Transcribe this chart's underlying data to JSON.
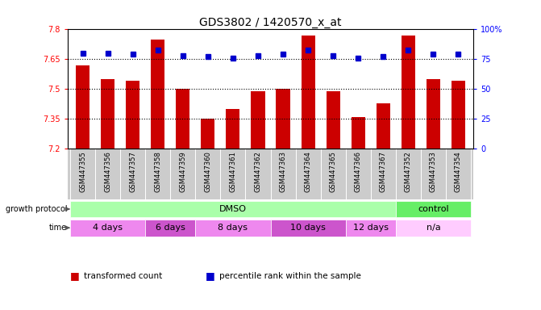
{
  "title": "GDS3802 / 1420570_x_at",
  "samples": [
    "GSM447355",
    "GSM447356",
    "GSM447357",
    "GSM447358",
    "GSM447359",
    "GSM447360",
    "GSM447361",
    "GSM447362",
    "GSM447363",
    "GSM447364",
    "GSM447365",
    "GSM447366",
    "GSM447367",
    "GSM447352",
    "GSM447353",
    "GSM447354"
  ],
  "bar_values": [
    7.62,
    7.55,
    7.54,
    7.75,
    7.5,
    7.35,
    7.4,
    7.49,
    7.5,
    7.77,
    7.49,
    7.36,
    7.43,
    7.77,
    7.55,
    7.54
  ],
  "percentile_values": [
    80,
    80,
    79,
    83,
    78,
    77,
    76,
    78,
    79,
    83,
    78,
    76,
    77,
    83,
    79,
    79
  ],
  "bar_bottom": 7.2,
  "ylim": [
    7.2,
    7.8
  ],
  "y_ticks": [
    7.2,
    7.35,
    7.5,
    7.65,
    7.8
  ],
  "y_tick_labels": [
    "7.2",
    "7.35",
    "7.5",
    "7.65",
    "7.8"
  ],
  "right_y_ticks": [
    0,
    25,
    50,
    75,
    100
  ],
  "right_y_labels": [
    "0",
    "25",
    "50",
    "75",
    "100%"
  ],
  "bar_color": "#CC0000",
  "percentile_color": "#0000CC",
  "dotted_lines": [
    7.35,
    7.5,
    7.65
  ],
  "growth_protocol_groups": [
    {
      "label": "DMSO",
      "start": 0,
      "end": 13,
      "color": "#AAFFAA"
    },
    {
      "label": "control",
      "start": 13,
      "end": 16,
      "color": "#66EE66"
    }
  ],
  "time_groups": [
    {
      "label": "4 days",
      "start": 0,
      "end": 3,
      "color": "#EE88EE"
    },
    {
      "label": "6 days",
      "start": 3,
      "end": 5,
      "color": "#CC55CC"
    },
    {
      "label": "8 days",
      "start": 5,
      "end": 8,
      "color": "#EE88EE"
    },
    {
      "label": "10 days",
      "start": 8,
      "end": 11,
      "color": "#CC55CC"
    },
    {
      "label": "12 days",
      "start": 11,
      "end": 13,
      "color": "#EE88EE"
    },
    {
      "label": "n/a",
      "start": 13,
      "end": 16,
      "color": "#FFCCFF"
    }
  ],
  "n_samples": 16,
  "xtick_bg_color": "#CCCCCC",
  "bar_width": 0.55
}
